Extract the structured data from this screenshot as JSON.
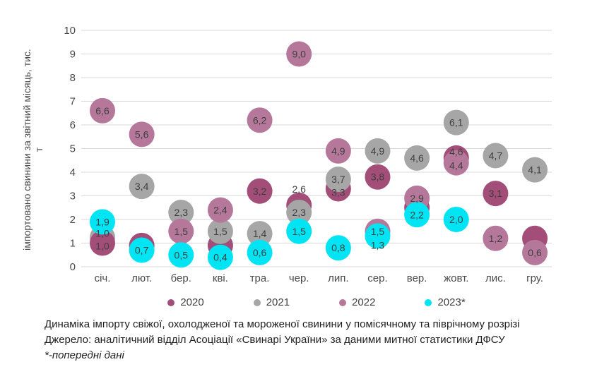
{
  "page": {
    "captions": {
      "title": "Динаміка імпорту свіжої, охолодженої та мороженої свинини у помісячному та піврічному розрізі",
      "source": "Джерело: аналітичний відділ Асоціації «Свинарі України» за даними митної статистики ДФСУ",
      "footnote": "*-попередні дані"
    }
  },
  "chart_data": {
    "type": "bubble",
    "title": "",
    "xlabel": "",
    "ylabel": "імпортовано свинини за звітний місяць, тис. т",
    "ylabel_line1": "імпортовано свинини за звітний місяць, тис.",
    "ylabel_line2": "т",
    "ylim": [
      0,
      10
    ],
    "y_ticks": [
      0,
      1,
      2,
      3,
      4,
      5,
      6,
      7,
      8,
      9,
      10
    ],
    "grid": "horizontal",
    "grid_color": "#D9D9D9",
    "label_color": "#3f3f3f",
    "axis_text_color": "#4a4a4a",
    "legend_position": "bottom",
    "categories": [
      "січ.",
      "лют.",
      "бер.",
      "кві.",
      "тра.",
      "чер.",
      "лип.",
      "сер.",
      "вер.",
      "жовт.",
      "лис.",
      "гру."
    ],
    "series": [
      {
        "name": "2020",
        "color": "#A24E78",
        "points": [
          {
            "month": 0,
            "value": 1.0,
            "label": "1,0",
            "z": 1.5,
            "label_dy": 4
          },
          {
            "month": 1,
            "value": 0.9,
            "label": null
          },
          {
            "month": 3,
            "value": 0.9,
            "label": null
          },
          {
            "month": 4,
            "value": 3.2,
            "label": "3,2"
          },
          {
            "month": 5,
            "value": 2.6,
            "label": "2,6",
            "label_dy": -23
          },
          {
            "month": 6,
            "value": 3.3,
            "label": "3,3",
            "label_dy": 5
          },
          {
            "month": 7,
            "value": 3.8,
            "label": "3,8"
          },
          {
            "month": 8,
            "value": 2.5,
            "label": null
          },
          {
            "month": 9,
            "value": 4.6,
            "label": "4,6",
            "label_dy": -9
          },
          {
            "month": 10,
            "value": 3.1,
            "label": "3,1"
          },
          {
            "month": 11,
            "value": 1.2,
            "label": null
          }
        ]
      },
      {
        "name": "2021",
        "color": "#A6A6A6",
        "points": [
          {
            "month": 0,
            "value": 1.0,
            "label": "1,0",
            "label_dy": -14,
            "circle_dy": -8
          },
          {
            "month": 1,
            "value": 3.4,
            "label": "3,4"
          },
          {
            "month": 2,
            "value": 2.3,
            "label": "2,3"
          },
          {
            "month": 3,
            "value": 1.5,
            "label": "1,5"
          },
          {
            "month": 4,
            "value": 1.4,
            "label": "1,4"
          },
          {
            "month": 5,
            "value": 2.3,
            "label": "2,3"
          },
          {
            "month": 6,
            "value": 3.7,
            "label": "3,7"
          },
          {
            "month": 7,
            "value": 4.9,
            "label": "4,9"
          },
          {
            "month": 8,
            "value": 4.6,
            "label": "4,6"
          },
          {
            "month": 9,
            "value": 6.1,
            "label": "6,1"
          },
          {
            "month": 10,
            "value": 4.7,
            "label": "4,7"
          },
          {
            "month": 11,
            "value": 4.1,
            "label": "4,1"
          }
        ]
      },
      {
        "name": "2022",
        "color": "#B5789B",
        "points": [
          {
            "month": 0,
            "value": 6.6,
            "label": "6,6"
          },
          {
            "month": 1,
            "value": 5.6,
            "label": "5,6"
          },
          {
            "month": 2,
            "value": 1.5,
            "label": "1,5"
          },
          {
            "month": 3,
            "value": 2.4,
            "label": "2,4"
          },
          {
            "month": 4,
            "value": 6.2,
            "label": "6,2"
          },
          {
            "month": 5,
            "value": 9.0,
            "label": "9,0"
          },
          {
            "month": 6,
            "value": 4.9,
            "label": "4,9"
          },
          {
            "month": 7,
            "value": 1.5,
            "label": "1,5"
          },
          {
            "month": 8,
            "value": 2.9,
            "label": "2,9"
          },
          {
            "month": 9,
            "value": 4.4,
            "label": "4,4",
            "label_dy": 4
          },
          {
            "month": 10,
            "value": 1.2,
            "label": "1,2"
          },
          {
            "month": 11,
            "value": 0.6,
            "label": "0,6"
          }
        ]
      },
      {
        "name": "2023*",
        "color": "#00E4F4",
        "points": [
          {
            "month": 0,
            "value": 1.9,
            "label": "1,9"
          },
          {
            "month": 1,
            "value": 0.7,
            "label": "0,7"
          },
          {
            "month": 2,
            "value": 0.5,
            "label": "0,5"
          },
          {
            "month": 3,
            "value": 0.4,
            "label": "0,4"
          },
          {
            "month": 4,
            "value": 0.6,
            "label": "0,6"
          },
          {
            "month": 5,
            "value": 1.5,
            "label": "1,5"
          },
          {
            "month": 6,
            "value": 0.8,
            "label": "0,8"
          },
          {
            "month": 7,
            "value": 1.3,
            "label": "1,3",
            "label_dy": 13
          },
          {
            "month": 8,
            "value": 2.2,
            "label": "2,2"
          },
          {
            "month": 9,
            "value": 2.0,
            "label": "2,0"
          }
        ]
      }
    ]
  }
}
